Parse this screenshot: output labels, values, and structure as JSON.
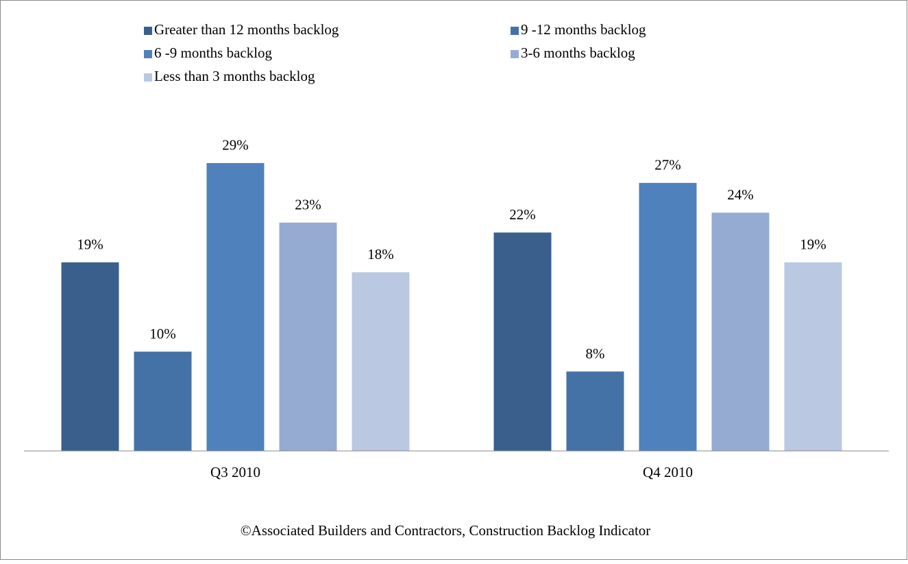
{
  "chart_data": {
    "type": "bar",
    "categories": [
      "Q3 2010",
      "Q4 2010"
    ],
    "series": [
      {
        "name": "Greater than 12 months backlog",
        "color": "#3b5f8d",
        "values": [
          19,
          22
        ],
        "value_labels": [
          "19%",
          "22%"
        ]
      },
      {
        "name": "9 -12 months backlog",
        "color": "#4472a6",
        "values": [
          10,
          8
        ],
        "value_labels": [
          "10%",
          "8%"
        ]
      },
      {
        "name": "6 -9 months backlog",
        "color": "#4f81bd",
        "values": [
          29,
          27
        ],
        "value_labels": [
          "29%",
          "27%"
        ]
      },
      {
        "name": "3-6 months backlog",
        "color": "#95abd2",
        "values": [
          23,
          24
        ],
        "value_labels": [
          "23%",
          "24%"
        ]
      },
      {
        "name": "Less than 3 months backlog",
        "color": "#bac8e1",
        "values": [
          18,
          19
        ],
        "value_labels": [
          "18%",
          "19%"
        ]
      }
    ],
    "ylim": [
      0,
      35
    ],
    "legend": "top",
    "source": "©Associated Builders and Contractors, Construction Backlog Indicator"
  }
}
